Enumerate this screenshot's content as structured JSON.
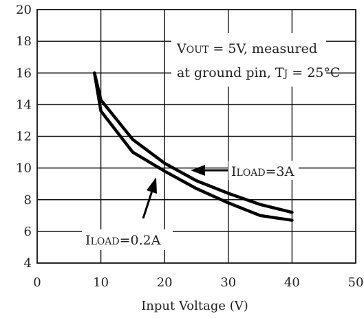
{
  "chart_data": {
    "type": "line",
    "title": "",
    "xlabel": "Input Voltage (V)",
    "ylabel": "",
    "xlim": [
      0,
      50
    ],
    "ylim": [
      4,
      20
    ],
    "xticks": [
      "0",
      "10",
      "20",
      "30",
      "40",
      "50"
    ],
    "yticks": [
      "4",
      "6",
      "8",
      "10",
      "12",
      "14",
      "16",
      "18",
      "20"
    ],
    "grid": true,
    "annotation": {
      "line1": {
        "v": "V",
        "out": "OUT",
        "rest": " = 5V, measured"
      },
      "line2": {
        "prefix": "at ground pin, T",
        "j": "J",
        "rest": " = 25°C"
      }
    },
    "series": [
      {
        "label": {
          "i": "I",
          "sub": "LOAD",
          "rest": "=3A"
        },
        "x": [
          9,
          10,
          15,
          20,
          25,
          30,
          35,
          40
        ],
        "y": [
          16.0,
          14.3,
          11.8,
          10.3,
          9.2,
          8.4,
          7.7,
          7.2
        ]
      },
      {
        "label": {
          "i": "I",
          "sub": "LOAD",
          "rest": "=0.2A"
        },
        "x": [
          9,
          10,
          15,
          20,
          25,
          30,
          35,
          40
        ],
        "y": [
          16.0,
          13.6,
          11.0,
          9.8,
          8.7,
          7.8,
          7.0,
          6.7
        ]
      }
    ]
  }
}
